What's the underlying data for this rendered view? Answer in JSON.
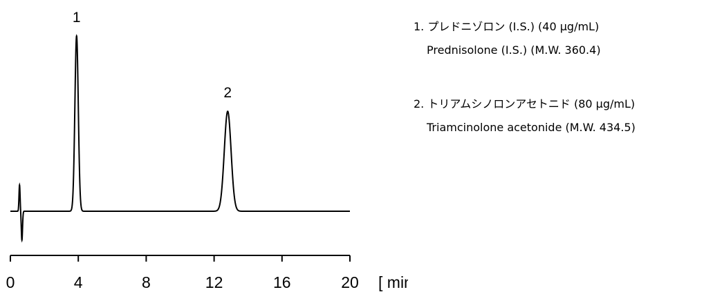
{
  "chart_data": {
    "type": "line",
    "xlabel": "[ min ]",
    "xlim": [
      0,
      20
    ],
    "x_ticks": [
      "0",
      "4",
      "8",
      "12",
      "16",
      "20"
    ],
    "peaks": [
      {
        "label": "1",
        "retention_time_min": 3.9,
        "relative_height": 1.0,
        "width_min": 0.1
      },
      {
        "label": "2",
        "retention_time_min": 12.8,
        "relative_height": 0.57,
        "width_min": 0.2
      }
    ],
    "injection_disturbance_min": 0.6
  },
  "legend": [
    {
      "line1": "1.  プレドニゾロン  (I.S.) (40 μg/mL)",
      "line2": "Prednisolone (I.S.) (M.W. 360.4)"
    },
    {
      "line1": "2.  トリアムシノロンアセトニド  (80 μg/mL)",
      "line2": "Triamcinolone acetonide (M.W. 434.5)"
    }
  ]
}
